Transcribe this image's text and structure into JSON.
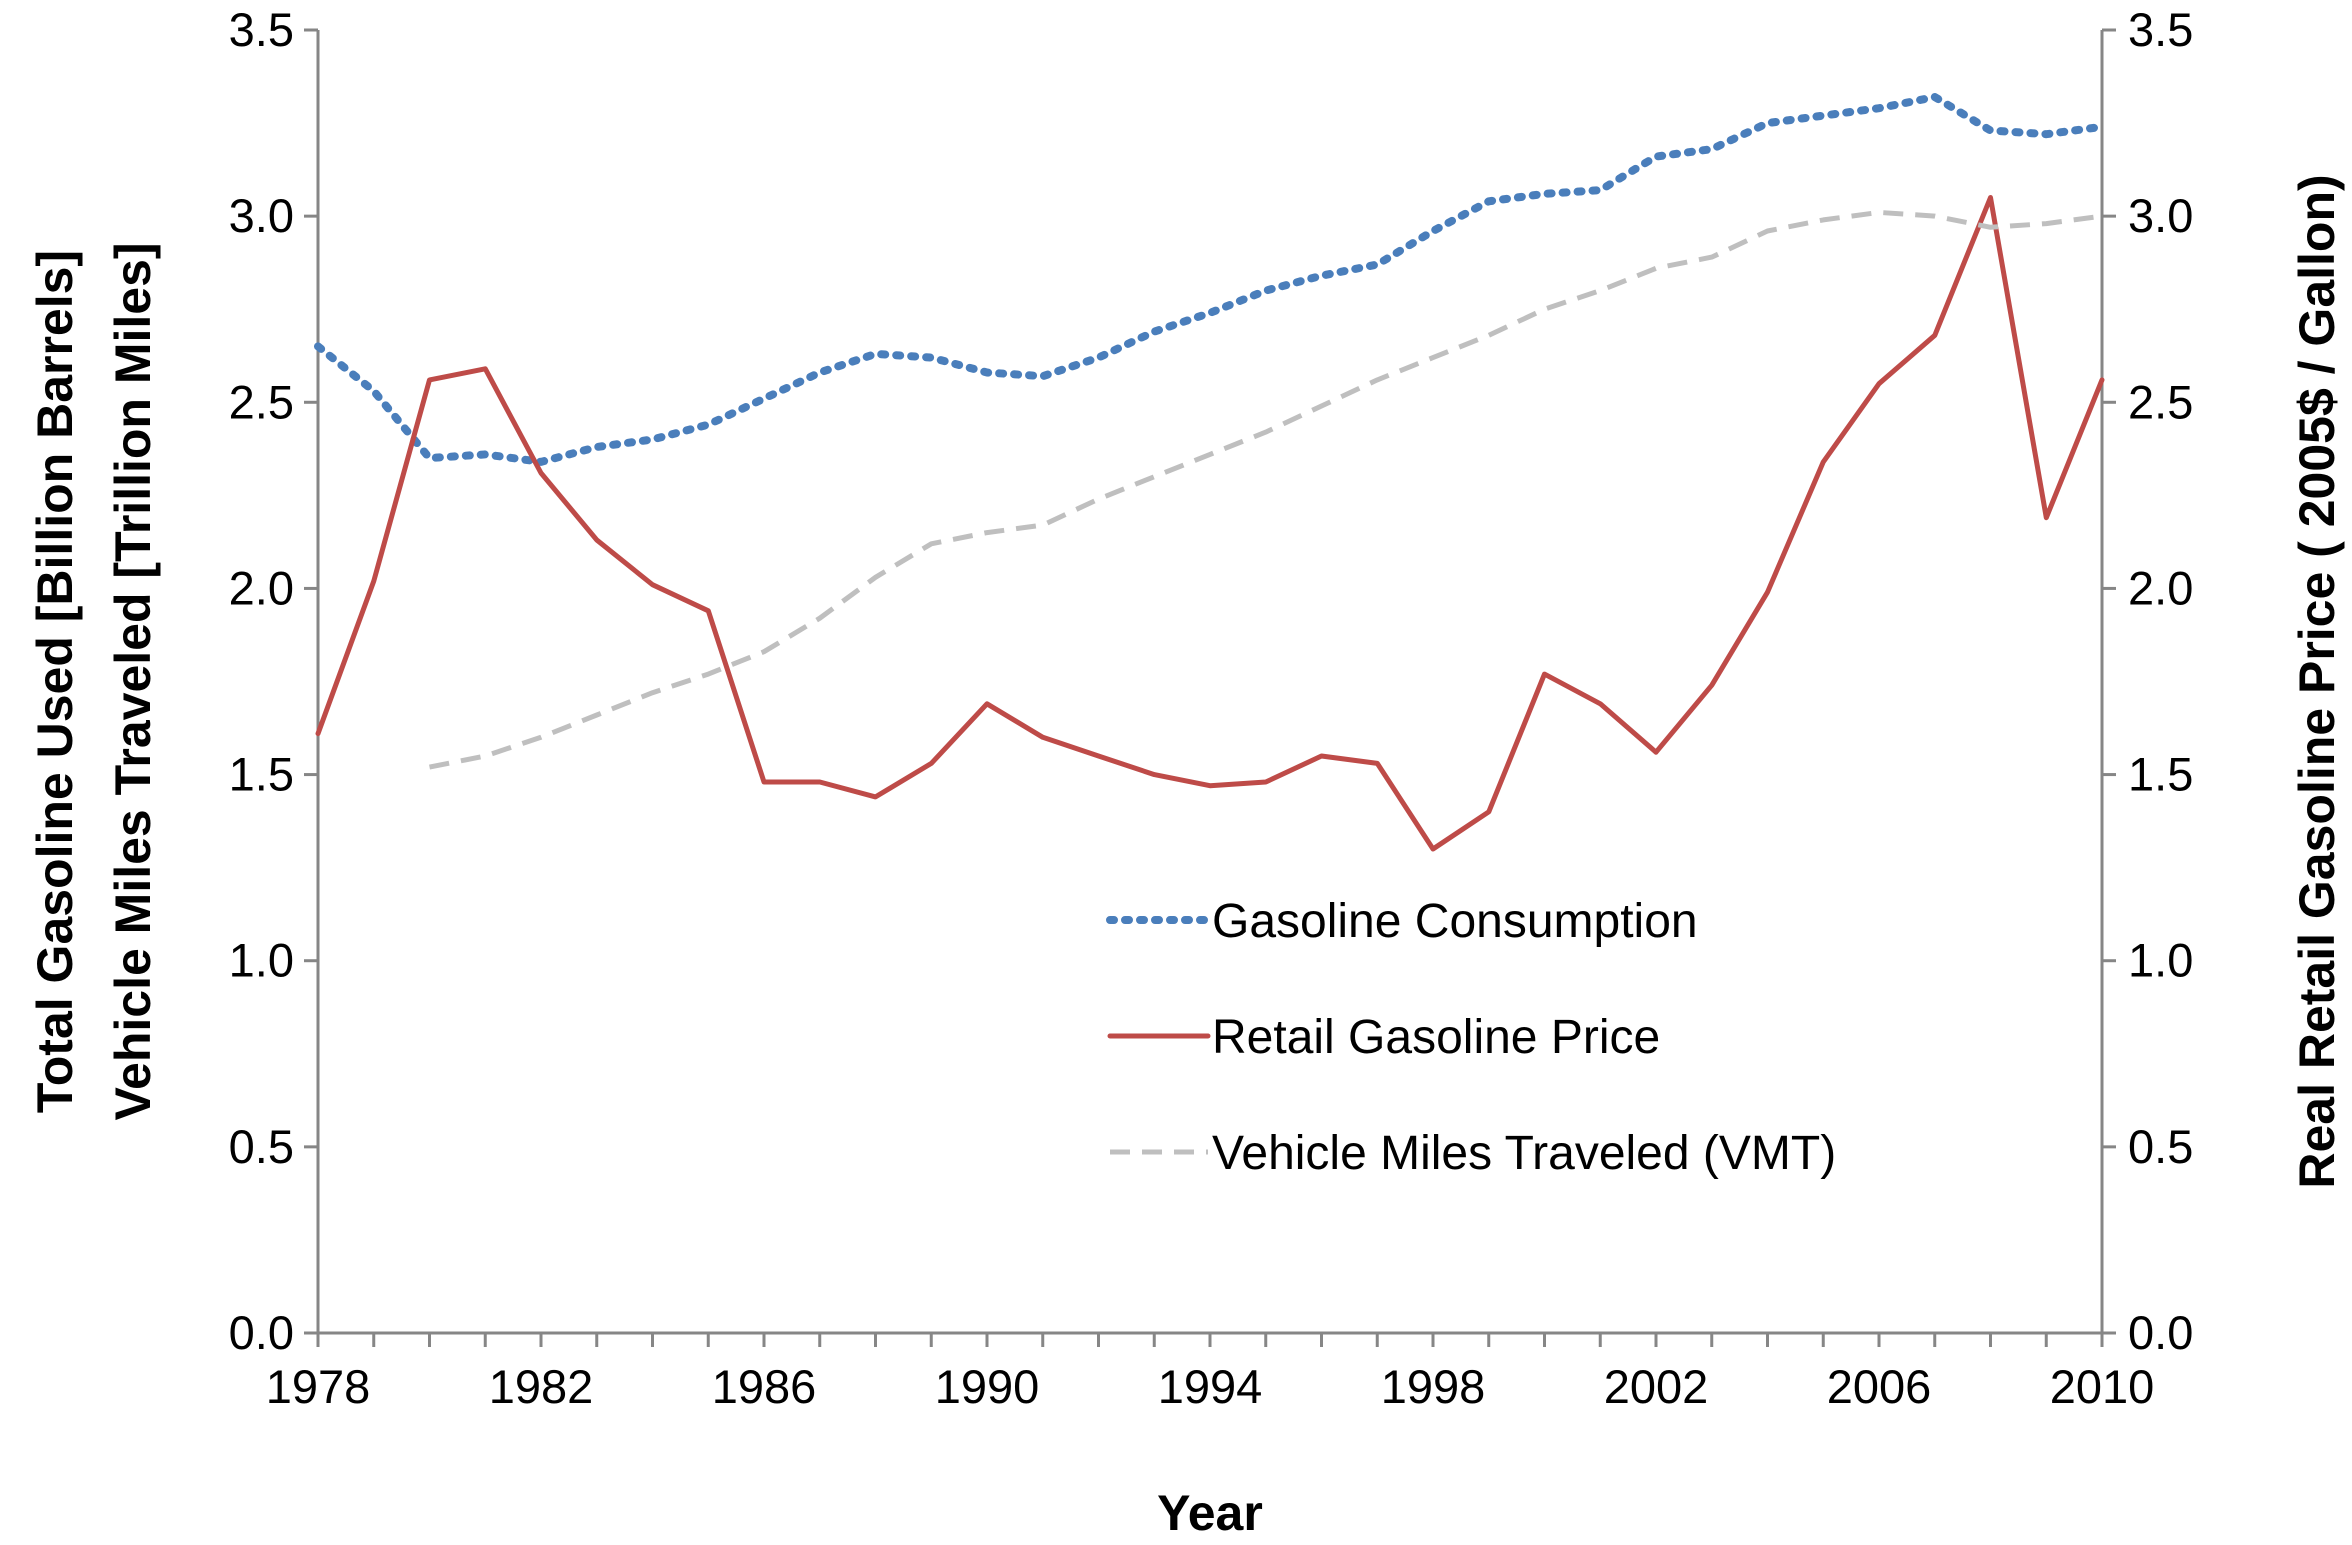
{
  "chart_data": {
    "type": "line",
    "title": "",
    "xlabel": "Year",
    "ylabel_left_line1": "Total Gasoline Used [Billion Barrels]",
    "ylabel_left_line2": "Vehicle Miles Traveled [Trillion Miles]",
    "ylabel_right": "Real Retail Gasoline Price ( 2005$ / Gallon)",
    "xlim": [
      1978,
      2010
    ],
    "ylim_left": [
      0,
      3.5
    ],
    "ylim_right": [
      0,
      3.5
    ],
    "x_ticks": [
      1978,
      1982,
      1986,
      1990,
      1994,
      1998,
      2002,
      2006,
      2010
    ],
    "y_ticks_left": [
      "0.0",
      "0.5",
      "1.0",
      "1.5",
      "2.0",
      "2.5",
      "3.0",
      "3.5"
    ],
    "y_ticks_right": [
      "0.0",
      "0.5",
      "1.0",
      "1.5",
      "2.0",
      "2.5",
      "3.0",
      "3.5"
    ],
    "legend_position": "center-right",
    "series": [
      {
        "name": "Gasoline Consumption",
        "axis": "left",
        "color": "#4a7ebb",
        "style": "dotted",
        "x": [
          1978,
          1979,
          1980,
          1981,
          1982,
          1983,
          1984,
          1985,
          1986,
          1987,
          1988,
          1989,
          1990,
          1991,
          1992,
          1993,
          1994,
          1995,
          1996,
          1997,
          1998,
          1999,
          2000,
          2001,
          2002,
          2003,
          2004,
          2005,
          2006,
          2007,
          2008,
          2009,
          2010
        ],
        "values": [
          2.65,
          2.53,
          2.35,
          2.36,
          2.34,
          2.38,
          2.4,
          2.44,
          2.51,
          2.58,
          2.63,
          2.62,
          2.58,
          2.57,
          2.62,
          2.69,
          2.74,
          2.8,
          2.84,
          2.87,
          2.96,
          3.04,
          3.06,
          3.07,
          3.16,
          3.18,
          3.25,
          3.27,
          3.29,
          3.32,
          3.23,
          3.22,
          3.24
        ]
      },
      {
        "name": "Retail Gasoline Price",
        "axis": "right",
        "color": "#be4b48",
        "style": "solid",
        "x": [
          1978,
          1979,
          1980,
          1981,
          1982,
          1983,
          1984,
          1985,
          1986,
          1987,
          1988,
          1989,
          1990,
          1991,
          1992,
          1993,
          1994,
          1995,
          1996,
          1997,
          1998,
          1999,
          2000,
          2001,
          2002,
          2003,
          2004,
          2005,
          2006,
          2007,
          2008,
          2009,
          2010
        ],
        "values": [
          1.61,
          2.02,
          2.56,
          2.59,
          2.31,
          2.13,
          2.01,
          1.94,
          1.48,
          1.48,
          1.44,
          1.53,
          1.69,
          1.6,
          1.55,
          1.5,
          1.47,
          1.48,
          1.55,
          1.53,
          1.3,
          1.4,
          1.77,
          1.69,
          1.56,
          1.74,
          1.99,
          2.34,
          2.55,
          2.68,
          3.05,
          2.19,
          2.56
        ]
      },
      {
        "name": "Vehicle Miles Traveled (VMT)",
        "axis": "left",
        "color": "#bfbfbf",
        "style": "dashed",
        "x": [
          1980,
          1981,
          1982,
          1983,
          1984,
          1985,
          1986,
          1987,
          1988,
          1989,
          1990,
          1991,
          1992,
          1993,
          1994,
          1995,
          1996,
          1997,
          1998,
          1999,
          2000,
          2001,
          2002,
          2003,
          2004,
          2005,
          2006,
          2007,
          2008,
          2009,
          2010
        ],
        "values": [
          1.52,
          1.55,
          1.6,
          1.66,
          1.72,
          1.77,
          1.83,
          1.92,
          2.03,
          2.12,
          2.15,
          2.17,
          2.24,
          2.3,
          2.36,
          2.42,
          2.49,
          2.56,
          2.62,
          2.68,
          2.75,
          2.8,
          2.86,
          2.89,
          2.96,
          2.99,
          3.01,
          3.0,
          2.97,
          2.98,
          3.0
        ]
      }
    ]
  }
}
